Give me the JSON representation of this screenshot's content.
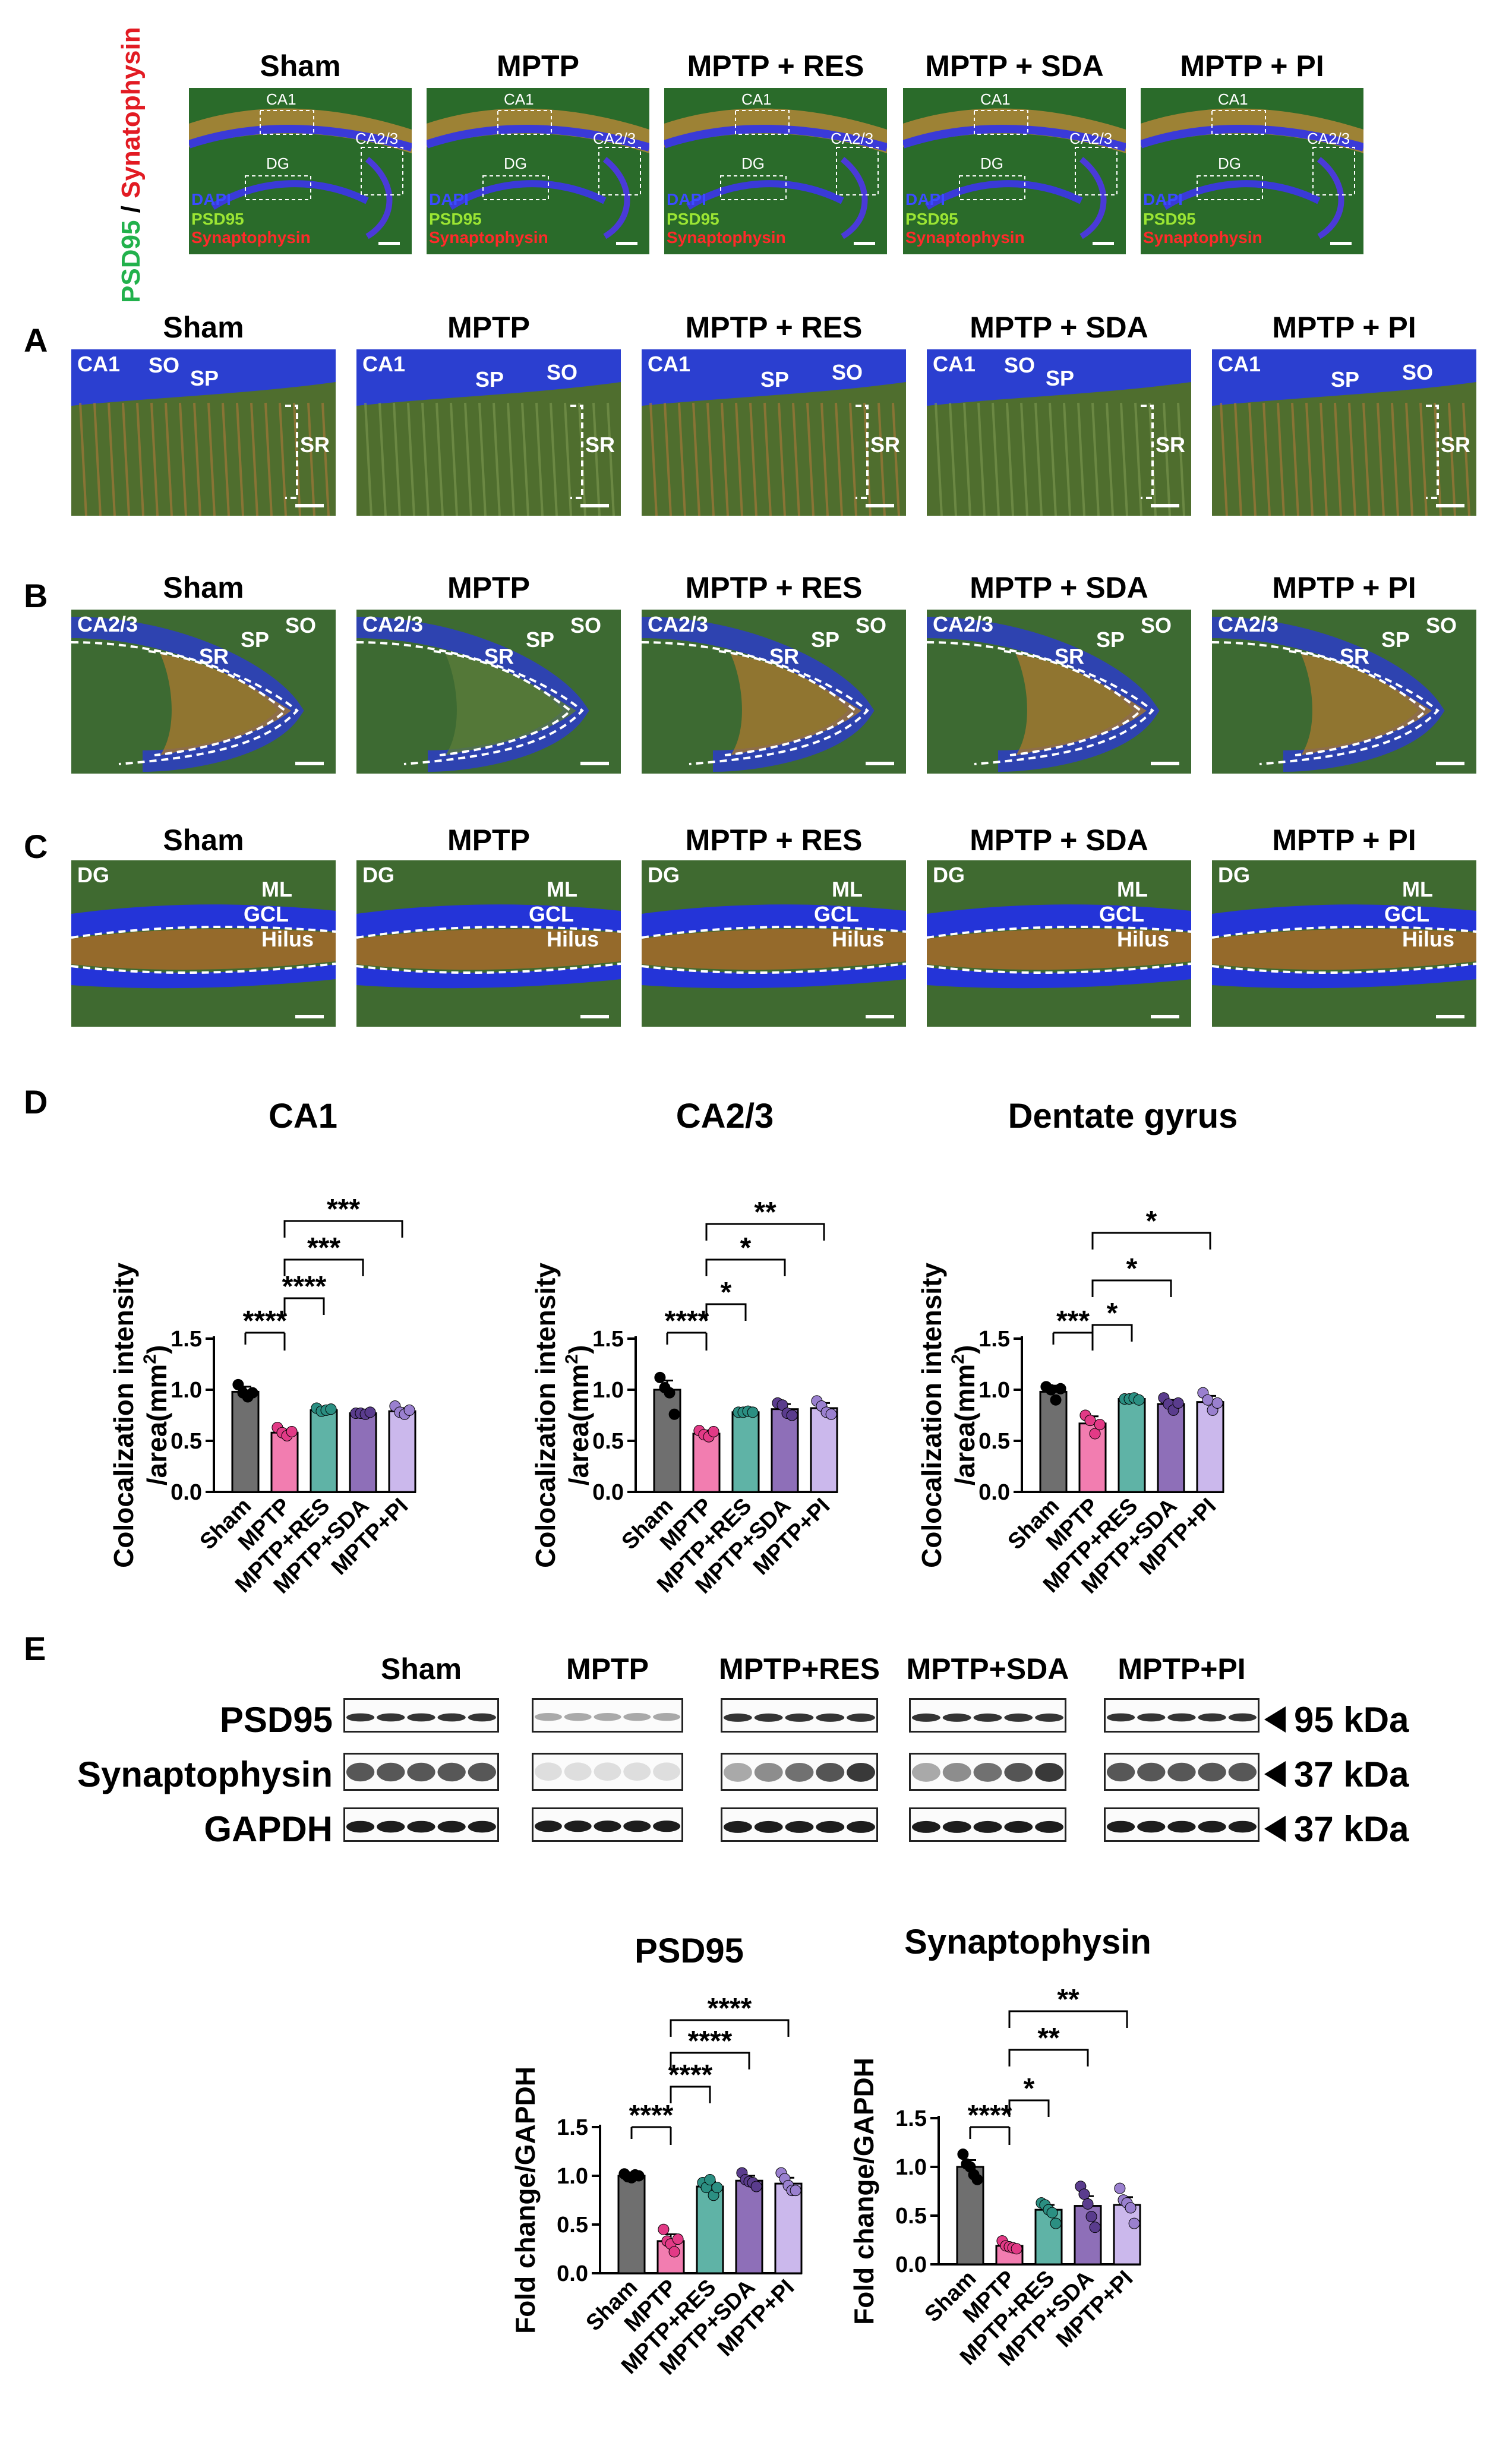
{
  "figure": {
    "side_label": {
      "green": "PSD95",
      "sep": " / ",
      "red": "Synatophysin"
    },
    "groups": [
      "Sham",
      "MPTP",
      "MPTP + RES",
      "MPTP + SDA",
      "MPTP + PI"
    ],
    "groups_wb": [
      "Sham",
      "MPTP",
      "MPTP+RES",
      "MPTP+SDA",
      "MPTP+PI"
    ],
    "overview": {
      "regions": [
        "CA1",
        "CA2/3",
        "DG"
      ],
      "channels": [
        "DAPI",
        "PSD95",
        "Synaptophysin"
      ]
    },
    "panels": {
      "A": {
        "letter": "A",
        "region": "CA1",
        "layers": [
          "SO",
          "SP",
          "SR"
        ]
      },
      "B": {
        "letter": "B",
        "region": "CA2/3",
        "layers": [
          "SO",
          "SP",
          "SR"
        ]
      },
      "C": {
        "letter": "C",
        "region": "DG",
        "layers": [
          "ML",
          "GCL",
          "Hilus"
        ]
      },
      "D": {
        "letter": "D"
      },
      "E": {
        "letter": "E"
      }
    },
    "western": {
      "rows": [
        {
          "name": "PSD95",
          "kda": "95 kDa"
        },
        {
          "name": "Synaptophysin",
          "kda": "37 kDa"
        },
        {
          "name": "GAPDH",
          "kda": "37 kDa"
        }
      ]
    },
    "colors": {
      "sham": "#6f6f6f",
      "mptp": "#f27db0",
      "res": "#5fb3a6",
      "sda": "#8e6fb8",
      "pi": "#cbb8ec",
      "dot_sham": "#000000",
      "dot_mptp": "#e23a86",
      "dot_res": "#2b8f82",
      "dot_sda": "#5a3c8d",
      "dot_pi": "#9a80cf"
    }
  },
  "chart_data": [
    {
      "type": "bar",
      "title": "CA1",
      "ylabel": "Colocalization intensity /area(mm2)",
      "categories": [
        "Sham",
        "MPTP",
        "MPTP+RES",
        "MPTP+SDA",
        "MPTP+PI"
      ],
      "values": [
        0.98,
        0.58,
        0.8,
        0.77,
        0.79
      ],
      "errors": [
        0.05,
        0.03,
        0.02,
        0.01,
        0.03
      ],
      "points": [
        [
          1.05,
          0.97,
          0.93,
          0.97
        ],
        [
          0.63,
          0.58,
          0.55,
          0.59
        ],
        [
          0.82,
          0.79,
          0.8,
          0.81
        ],
        [
          0.77,
          0.77,
          0.76,
          0.78
        ],
        [
          0.84,
          0.78,
          0.76,
          0.8
        ]
      ],
      "ylim": [
        0,
        1.5
      ],
      "yticks": [
        "0.0",
        "0.5",
        "1.0",
        "1.5"
      ],
      "sig": [
        {
          "from": 0,
          "to": 1,
          "label": "****"
        },
        {
          "from": 1,
          "to": 2,
          "label": "****"
        },
        {
          "from": 1,
          "to": 3,
          "label": "***"
        },
        {
          "from": 1,
          "to": 4,
          "label": "***"
        }
      ]
    },
    {
      "type": "bar",
      "title": "CA2/3",
      "ylabel": "Colocalization intensity /area(mm2)",
      "categories": [
        "Sham",
        "MPTP",
        "MPTP+RES",
        "MPTP+SDA",
        "MPTP+PI"
      ],
      "values": [
        1.0,
        0.57,
        0.78,
        0.81,
        0.82
      ],
      "errors": [
        0.09,
        0.03,
        0.01,
        0.05,
        0.05
      ],
      "points": [
        [
          1.12,
          1.02,
          0.97,
          0.76
        ],
        [
          0.6,
          0.56,
          0.54,
          0.59
        ],
        [
          0.78,
          0.78,
          0.79,
          0.78
        ],
        [
          0.87,
          0.85,
          0.77,
          0.75
        ],
        [
          0.89,
          0.84,
          0.78,
          0.76
        ]
      ],
      "ylim": [
        0,
        1.5
      ],
      "yticks": [
        "0.0",
        "0.5",
        "1.0",
        "1.5"
      ],
      "sig": [
        {
          "from": 0,
          "to": 1,
          "label": "****"
        },
        {
          "from": 1,
          "to": 2,
          "label": "*"
        },
        {
          "from": 1,
          "to": 3,
          "label": "*"
        },
        {
          "from": 1,
          "to": 4,
          "label": "**"
        }
      ]
    },
    {
      "type": "bar",
      "title": "Dentate gyrus",
      "ylabel": "Colocalization intensity /area(mm2)",
      "categories": [
        "Sham",
        "MPTP",
        "MPTP+RES",
        "MPTP+SDA",
        "MPTP+PI"
      ],
      "values": [
        0.98,
        0.67,
        0.91,
        0.86,
        0.88
      ],
      "errors": [
        0.06,
        0.07,
        0.01,
        0.04,
        0.06
      ],
      "points": [
        [
          1.03,
          1.0,
          0.9,
          1.01
        ],
        [
          0.75,
          0.7,
          0.57,
          0.66
        ],
        [
          0.91,
          0.91,
          0.92,
          0.9
        ],
        [
          0.92,
          0.86,
          0.8,
          0.87
        ],
        [
          0.97,
          0.9,
          0.8,
          0.87
        ]
      ],
      "ylim": [
        0,
        1.5
      ],
      "yticks": [
        "0.0",
        "0.5",
        "1.0",
        "1.5"
      ],
      "sig": [
        {
          "from": 0,
          "to": 1,
          "label": "***"
        },
        {
          "from": 1,
          "to": 2,
          "label": "*"
        },
        {
          "from": 1,
          "to": 3,
          "label": "*"
        },
        {
          "from": 1,
          "to": 4,
          "label": "*"
        }
      ]
    },
    {
      "type": "bar",
      "title": "PSD95",
      "ylabel": "Fold change/GAPDH",
      "categories": [
        "Sham",
        "MPTP",
        "MPTP+RES",
        "MPTP+SDA",
        "MPTP+PI"
      ],
      "values": [
        1.0,
        0.33,
        0.89,
        0.95,
        0.92
      ],
      "errors": [
        0.02,
        0.07,
        0.05,
        0.05,
        0.06
      ],
      "points": [
        [
          1.02,
          0.99,
          0.98,
          1.01,
          1.0
        ],
        [
          0.45,
          0.33,
          0.3,
          0.22,
          0.35
        ],
        [
          0.93,
          0.88,
          0.96,
          0.8,
          0.88
        ],
        [
          1.03,
          0.96,
          0.94,
          0.93,
          0.89
        ],
        [
          1.03,
          0.97,
          0.9,
          0.85,
          0.85
        ]
      ],
      "ylim": [
        0,
        1.5
      ],
      "yticks": [
        "0.0",
        "0.5",
        "1.0",
        "1.5"
      ],
      "sig": [
        {
          "from": 0,
          "to": 1,
          "label": "****"
        },
        {
          "from": 1,
          "to": 2,
          "label": "****"
        },
        {
          "from": 1,
          "to": 3,
          "label": "****"
        },
        {
          "from": 1,
          "to": 4,
          "label": "****"
        }
      ]
    },
    {
      "type": "bar",
      "title": "Synaptophysin",
      "ylabel": "Fold change/GAPDH",
      "categories": [
        "Sham",
        "MPTP",
        "MPTP+RES",
        "MPTP+SDA",
        "MPTP+PI"
      ],
      "values": [
        1.0,
        0.19,
        0.56,
        0.6,
        0.61
      ],
      "errors": [
        0.07,
        0.02,
        0.05,
        0.1,
        0.08
      ],
      "points": [
        [
          1.13,
          1.03,
          1.0,
          0.92,
          0.87
        ],
        [
          0.24,
          0.19,
          0.18,
          0.17,
          0.16
        ],
        [
          0.63,
          0.61,
          0.56,
          0.53,
          0.42
        ],
        [
          0.8,
          0.72,
          0.62,
          0.49,
          0.38
        ],
        [
          0.78,
          0.66,
          0.63,
          0.58,
          0.42
        ]
      ],
      "ylim": [
        0,
        1.5
      ],
      "yticks": [
        "0.0",
        "0.5",
        "1.0",
        "1.5"
      ],
      "sig": [
        {
          "from": 0,
          "to": 1,
          "label": "****"
        },
        {
          "from": 1,
          "to": 2,
          "label": "*"
        },
        {
          "from": 1,
          "to": 3,
          "label": "**"
        },
        {
          "from": 1,
          "to": 4,
          "label": "**"
        }
      ]
    }
  ]
}
